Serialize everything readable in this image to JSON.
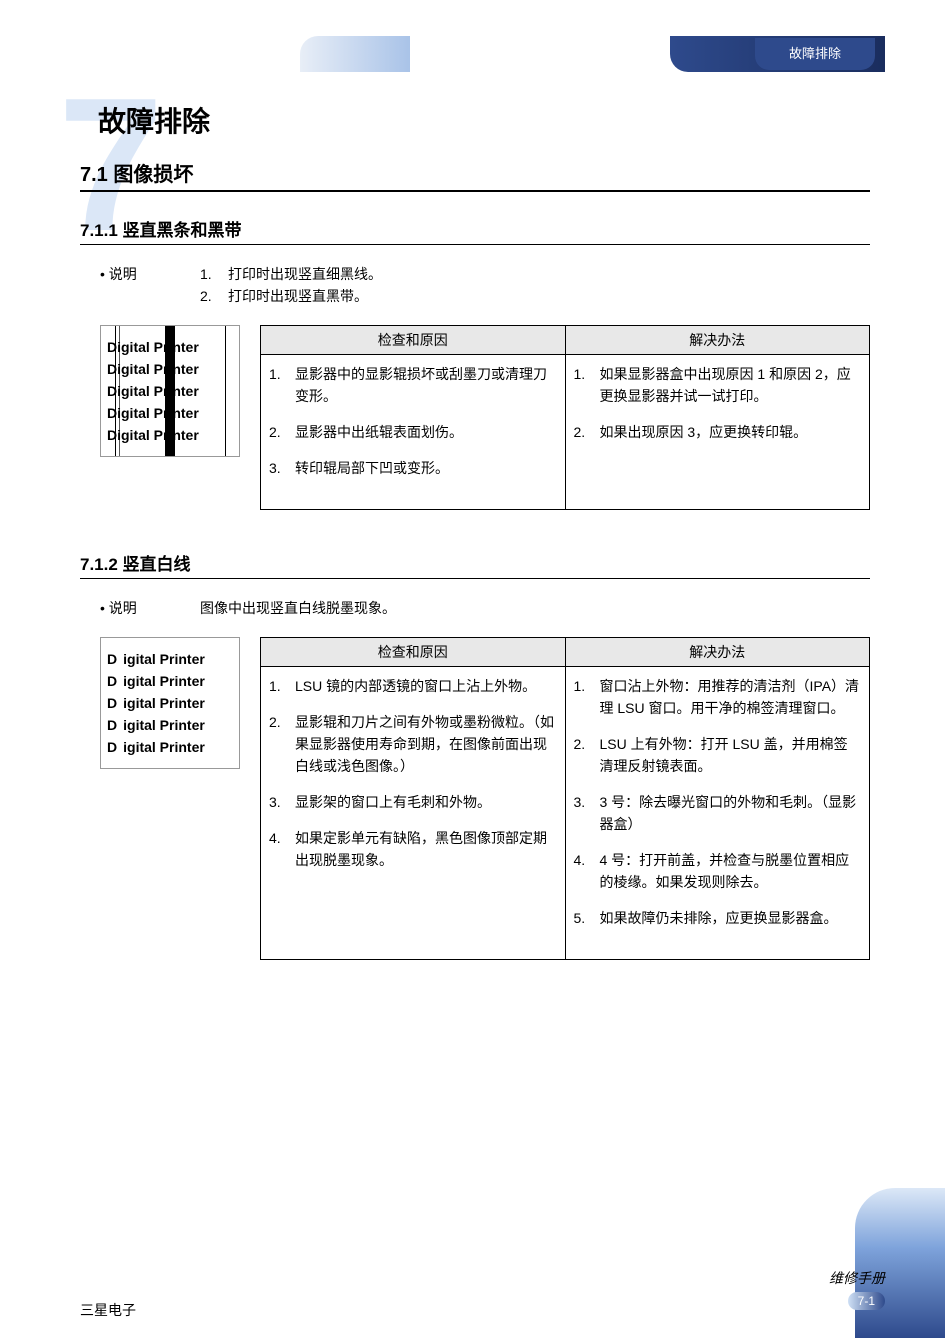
{
  "header": {
    "tag": "故障排除"
  },
  "chapter": {
    "watermark": "7",
    "title": "故障排除"
  },
  "section_7_1": {
    "heading": "7.1 图像损坏"
  },
  "sub_7_1_1": {
    "heading": "7.1.1 竖直黑条和黑带",
    "desc_label": "说明",
    "desc_items": [
      "打印时出现竖直细黑线。",
      "打印时出现竖直黑带。"
    ],
    "sample_lines": [
      "Digital Printer",
      "Digital Printer",
      "Digital Printer",
      "Digital Printer",
      "Digital Printer"
    ],
    "cause_header": "检查和原因",
    "solution_header": "解决办法",
    "causes": [
      "显影器中的显影辊损坏或刮墨刀或清理刀变形。",
      "显影器中出纸辊表面划伤。",
      "转印辊局部下凹或变形。"
    ],
    "solutions": [
      "如果显影器盒中出现原因 1 和原因 2，应更换显影器并试一试打印。",
      "如果出现原因 3，应更换转印辊。"
    ]
  },
  "sub_7_1_2": {
    "heading": "7.1.2 竖直白线",
    "desc_label": "说明",
    "desc_text": "图像中出现竖直白线脱墨现象。",
    "sample_lines": [
      "Digital Printer",
      "Digital Printer",
      "Digital Printer",
      "Digital Printer",
      "Digital Printer"
    ],
    "cause_header": "检查和原因",
    "solution_header": "解决办法",
    "causes": [
      "LSU 镜的内部透镜的窗口上沾上外物。",
      "显影辊和刀片之间有外物或墨粉微粒。（如果显影器使用寿命到期，在图像前面出现白线或浅色图像。）",
      "显影架的窗口上有毛刺和外物。",
      "如果定影单元有缺陷，黑色图像顶部定期出现脱墨现象。"
    ],
    "solutions": [
      "窗口沾上外物：用推荐的清洁剂（IPA）清理 LSU 窗口。用干净的棉签清理窗口。",
      "LSU 上有外物：打开 LSU 盖，并用棉签清理反射镜表面。",
      "3 号：除去曝光窗口的外物和毛刺。（显影器盒）",
      "4 号：打开前盖，并检查与脱墨位置相应的棱缘。如果发现则除去。",
      "如果故障仍未排除，应更换显影器盒。"
    ]
  },
  "footer": {
    "manual_label": "维修手册",
    "page_num": "7-1",
    "company": "三星电子"
  },
  "colors": {
    "header_dark": "#2e4a8c",
    "header_light": "#cfe0f5",
    "watermark": "#dbe7f7",
    "table_header_bg": "#e8e8e8",
    "text": "#000000",
    "page_bg": "#ffffff"
  }
}
